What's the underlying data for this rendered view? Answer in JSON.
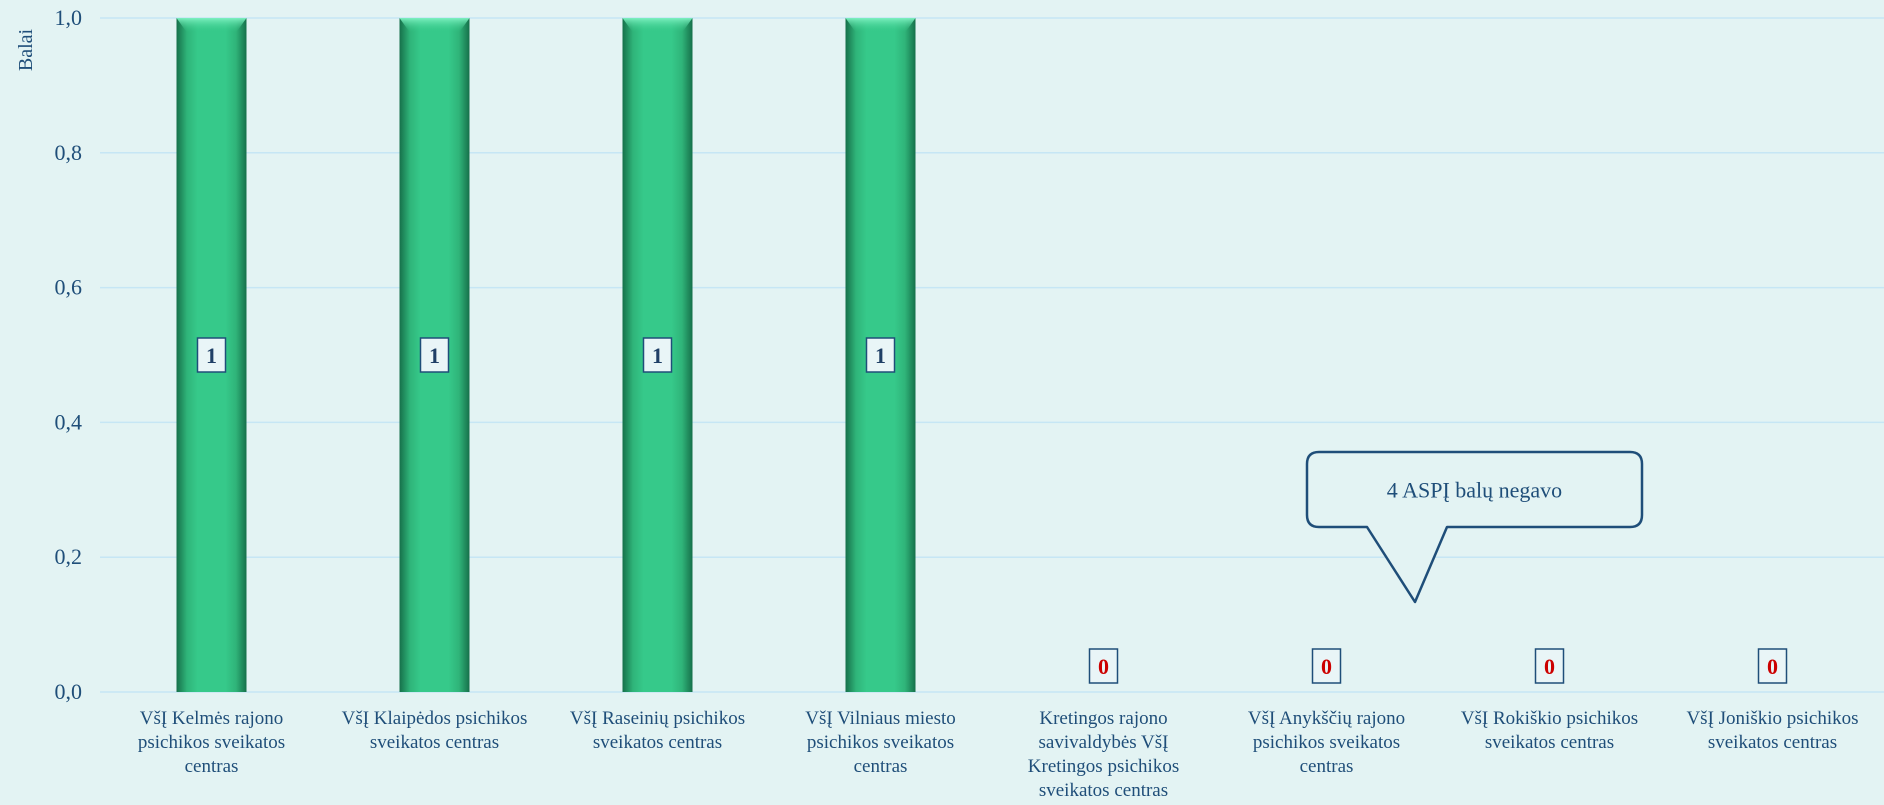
{
  "chart_data": {
    "type": "bar",
    "ylabel": "Balai",
    "ylim": [
      0,
      1
    ],
    "yticks": [
      "0,0",
      "0,2",
      "0,4",
      "0,6",
      "0,8",
      "1,0"
    ],
    "categories": [
      "VšĮ Kelmės rajono psichikos sveikatos centras",
      "VšĮ Klaipėdos psichikos sveikatos centras",
      "VšĮ Raseinių psichikos sveikatos centras",
      "VšĮ Vilniaus miesto psichikos sveikatos centras",
      "Kretingos rajono savivaldybės VšĮ Kretingos psichikos sveikatos centras",
      "VšĮ Anykščių rajono psichikos sveikatos centras",
      "VšĮ Rokiškio psichikos sveikatos centras",
      "VšĮ Joniškio psichikos sveikatos centras"
    ],
    "category_lines": [
      [
        "VšĮ Kelmės rajono",
        "psichikos sveikatos",
        "centras"
      ],
      [
        "VšĮ Klaipėdos psichikos",
        "sveikatos centras"
      ],
      [
        "VšĮ Raseinių psichikos",
        "sveikatos centras"
      ],
      [
        "VšĮ Vilniaus miesto",
        "psichikos sveikatos",
        "centras"
      ],
      [
        "Kretingos rajono",
        "savivaldybės VšĮ",
        "Kretingos psichikos",
        "sveikatos centras"
      ],
      [
        "VšĮ Anykščių rajono",
        "psichikos sveikatos",
        "centras"
      ],
      [
        "VšĮ Rokiškio psichikos",
        "sveikatos centras"
      ],
      [
        "VšĮ Joniškio psichikos",
        "sveikatos centras"
      ]
    ],
    "values": [
      1,
      1,
      1,
      1,
      0,
      0,
      0,
      0
    ],
    "data_labels": [
      "1",
      "1",
      "1",
      "1",
      "0",
      "0",
      "0",
      "0"
    ],
    "annotations": [
      {
        "text": "4 ASPĮ balų negavo"
      }
    ],
    "grid": true,
    "legend": "none",
    "colors": {
      "background": "#e3f3f3",
      "bar": "#34c585",
      "bar_dark": "#1a7a50",
      "grid": "#c6e6f4",
      "text": "#1f4e79",
      "label_positive": "#1f3f66",
      "label_zero": "#cc0000"
    }
  }
}
